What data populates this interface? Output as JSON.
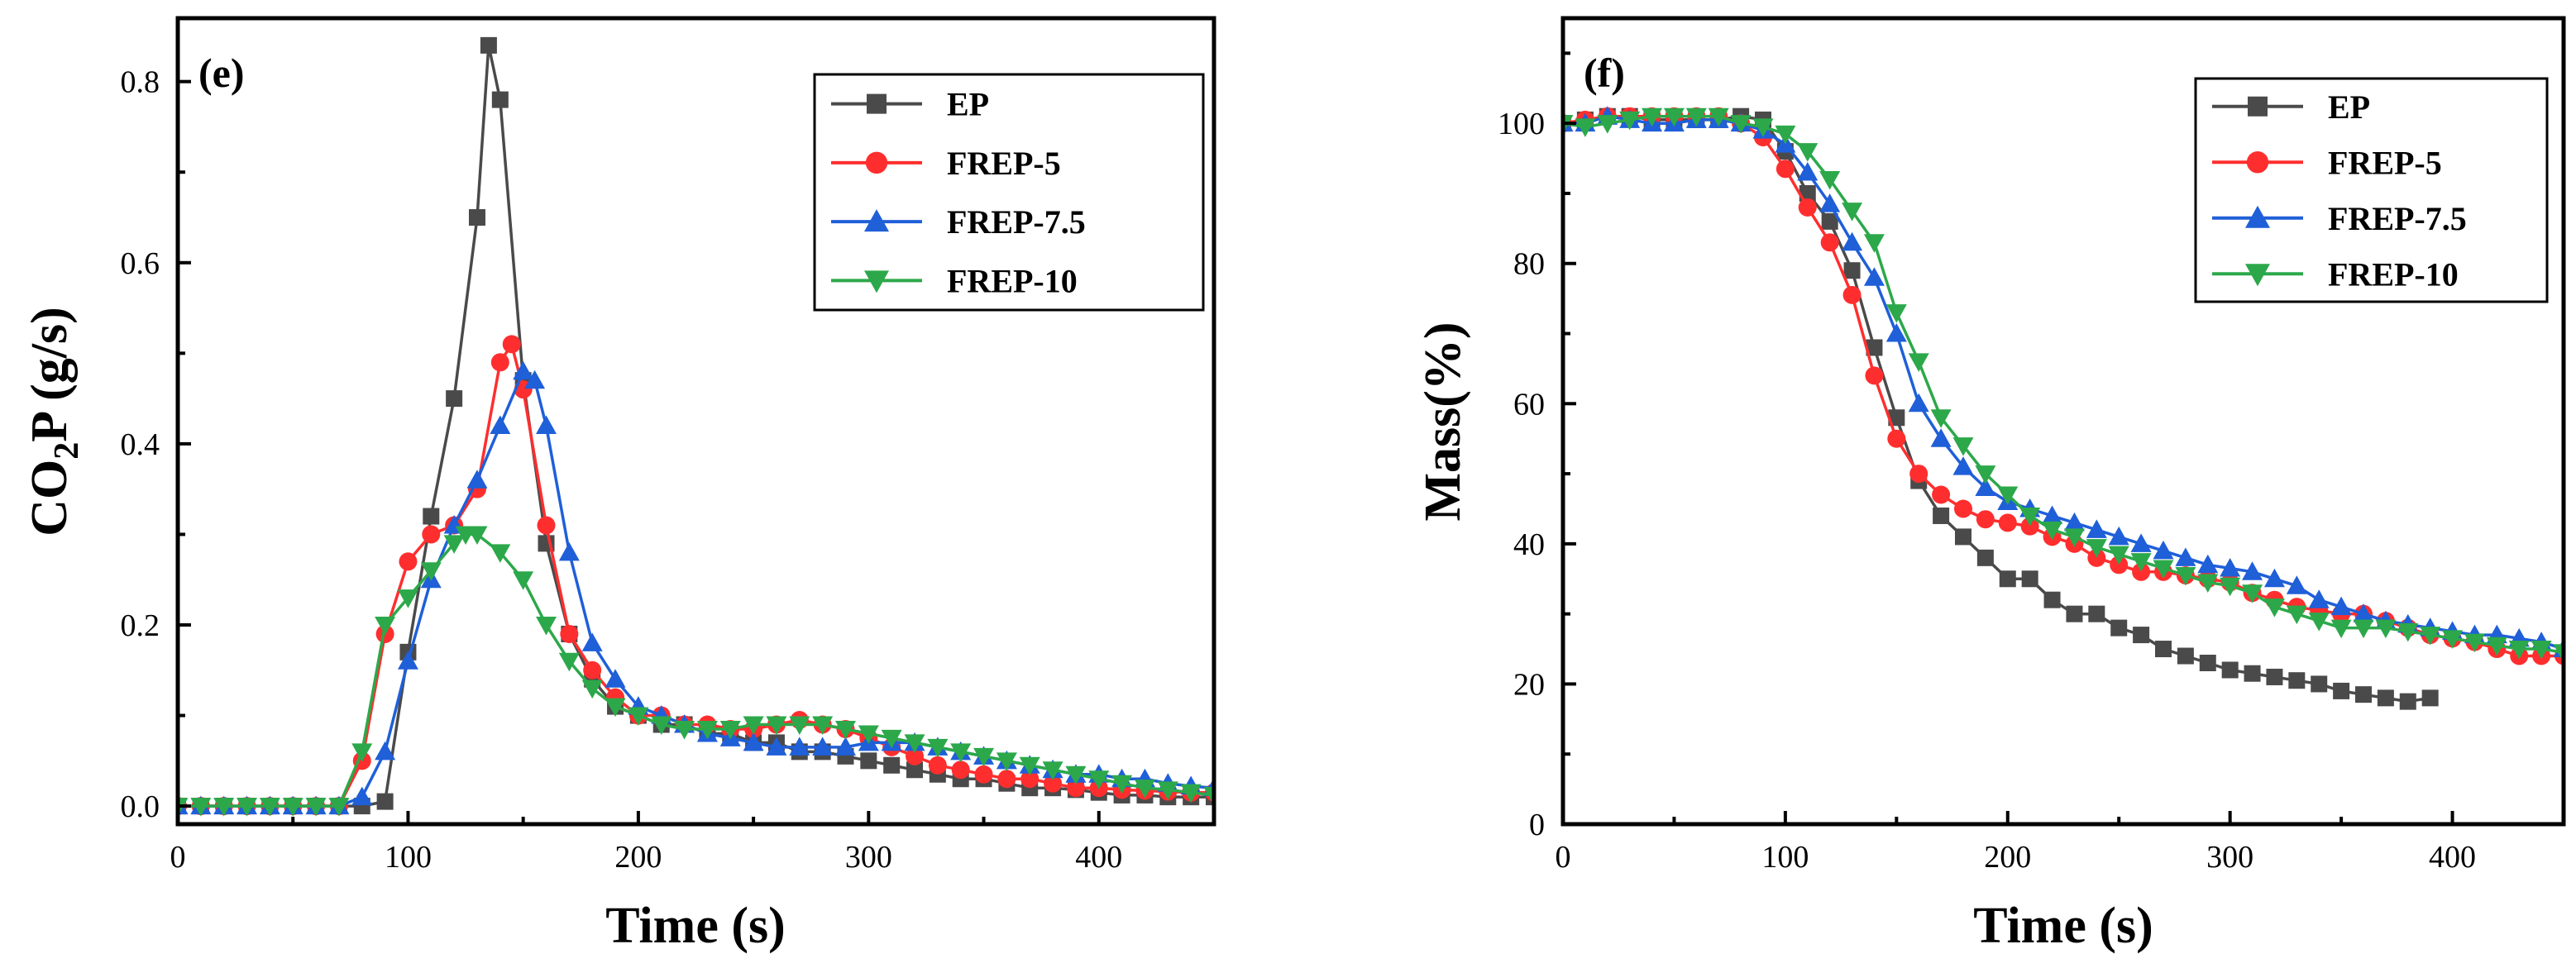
{
  "colors": {
    "EP": "#4a4a4a",
    "FREP-5": "#ff2e2e",
    "FREP-7.5": "#1f5fd8",
    "FREP-10": "#2ca84a"
  },
  "markers": {
    "EP": "square",
    "FREP-5": "circle",
    "FREP-7.5": "triangle-up",
    "FREP-10": "triangle-down"
  },
  "chart_data": [
    {
      "type": "line",
      "panel_label": "(e)",
      "xlabel": "Time (s)",
      "ylabel": "CO2P (g/s)",
      "ylabel_main": "CO",
      "ylabel_sub": "2",
      "ylabel_tail": "P (g/s)",
      "xlim": [
        0,
        450
      ],
      "ylim": [
        -0.02,
        0.87
      ],
      "xticks": [
        0,
        100,
        200,
        300,
        400
      ],
      "xtick_labels": [
        "0",
        "100",
        "200",
        "300",
        "400"
      ],
      "yticks": [
        0.0,
        0.2,
        0.4,
        0.6,
        0.8
      ],
      "ytick_labels": [
        "0.0",
        "0.2",
        "0.4",
        "0.6",
        "0.8"
      ],
      "legend": [
        "EP",
        "FREP-5",
        "FREP-7.5",
        "FREP-10"
      ],
      "legend_position": "top-right",
      "series": [
        {
          "name": "EP",
          "x": [
            0,
            10,
            20,
            30,
            40,
            50,
            60,
            70,
            80,
            90,
            100,
            110,
            120,
            130,
            135,
            140,
            150,
            160,
            170,
            180,
            190,
            200,
            210,
            220,
            230,
            240,
            250,
            260,
            270,
            280,
            290,
            300,
            310,
            320,
            330,
            340,
            350,
            360,
            370,
            380,
            390,
            400,
            410,
            420,
            430,
            440,
            450
          ],
          "y": [
            0,
            0,
            0,
            0,
            0,
            0,
            0,
            0,
            0,
            0.005,
            0.17,
            0.32,
            0.45,
            0.65,
            0.84,
            0.78,
            0.47,
            0.29,
            0.19,
            0.14,
            0.11,
            0.1,
            0.09,
            0.09,
            0.08,
            0.08,
            0.07,
            0.07,
            0.06,
            0.06,
            0.055,
            0.05,
            0.045,
            0.04,
            0.035,
            0.03,
            0.03,
            0.025,
            0.02,
            0.02,
            0.018,
            0.015,
            0.012,
            0.012,
            0.01,
            0.01,
            0.01
          ]
        },
        {
          "name": "FREP-5",
          "x": [
            0,
            10,
            20,
            30,
            40,
            50,
            60,
            70,
            80,
            90,
            100,
            110,
            120,
            130,
            140,
            145,
            150,
            160,
            170,
            180,
            190,
            200,
            210,
            220,
            230,
            240,
            250,
            260,
            270,
            280,
            290,
            300,
            310,
            320,
            330,
            340,
            350,
            360,
            370,
            380,
            390,
            400,
            410,
            420,
            430,
            440,
            450
          ],
          "y": [
            0,
            0,
            0,
            0,
            0,
            0,
            0,
            0,
            0.05,
            0.19,
            0.27,
            0.3,
            0.31,
            0.35,
            0.49,
            0.51,
            0.46,
            0.31,
            0.19,
            0.15,
            0.12,
            0.1,
            0.1,
            0.09,
            0.09,
            0.085,
            0.085,
            0.09,
            0.095,
            0.09,
            0.085,
            0.075,
            0.065,
            0.055,
            0.045,
            0.04,
            0.035,
            0.03,
            0.03,
            0.025,
            0.02,
            0.02,
            0.018,
            0.017,
            0.016,
            0.015,
            0.015
          ]
        },
        {
          "name": "FREP-7.5",
          "x": [
            0,
            10,
            20,
            30,
            40,
            50,
            60,
            70,
            80,
            90,
            100,
            110,
            120,
            130,
            140,
            150,
            155,
            160,
            170,
            180,
            190,
            200,
            210,
            220,
            230,
            240,
            250,
            260,
            270,
            280,
            290,
            300,
            310,
            320,
            330,
            340,
            350,
            360,
            370,
            380,
            390,
            400,
            410,
            420,
            430,
            440,
            450
          ],
          "y": [
            0,
            0,
            0,
            0,
            0,
            0,
            0,
            0,
            0.01,
            0.06,
            0.16,
            0.25,
            0.31,
            0.36,
            0.42,
            0.48,
            0.47,
            0.42,
            0.28,
            0.18,
            0.14,
            0.11,
            0.1,
            0.09,
            0.08,
            0.075,
            0.07,
            0.065,
            0.065,
            0.065,
            0.065,
            0.07,
            0.07,
            0.07,
            0.065,
            0.06,
            0.055,
            0.05,
            0.045,
            0.04,
            0.035,
            0.035,
            0.03,
            0.03,
            0.025,
            0.022,
            0.02
          ]
        },
        {
          "name": "FREP-10",
          "x": [
            0,
            10,
            20,
            30,
            40,
            50,
            60,
            70,
            80,
            90,
            100,
            110,
            120,
            125,
            130,
            140,
            150,
            160,
            170,
            180,
            190,
            200,
            210,
            220,
            230,
            240,
            250,
            260,
            270,
            280,
            290,
            300,
            310,
            320,
            330,
            340,
            350,
            360,
            370,
            380,
            390,
            400,
            410,
            420,
            430,
            440,
            450
          ],
          "y": [
            0,
            0,
            0,
            0,
            0,
            0,
            0,
            0,
            0.06,
            0.2,
            0.23,
            0.26,
            0.29,
            0.3,
            0.3,
            0.28,
            0.25,
            0.2,
            0.16,
            0.13,
            0.11,
            0.1,
            0.09,
            0.085,
            0.085,
            0.085,
            0.09,
            0.09,
            0.09,
            0.09,
            0.085,
            0.08,
            0.075,
            0.07,
            0.065,
            0.06,
            0.055,
            0.05,
            0.045,
            0.04,
            0.035,
            0.03,
            0.025,
            0.02,
            0.018,
            0.015,
            0.012
          ]
        }
      ]
    },
    {
      "type": "line",
      "panel_label": "(f)",
      "xlabel": "Time (s)",
      "ylabel": "Mass(%)",
      "xlim": [
        0,
        450
      ],
      "ylim": [
        0,
        115
      ],
      "xticks": [
        0,
        100,
        200,
        300,
        400
      ],
      "xtick_labels": [
        "0",
        "100",
        "200",
        "300",
        "400"
      ],
      "yticks": [
        0,
        20,
        40,
        60,
        80,
        100
      ],
      "ytick_labels": [
        "0",
        "20",
        "40",
        "60",
        "80",
        "100"
      ],
      "legend": [
        "EP",
        "FREP-5",
        "FREP-7.5",
        "FREP-10"
      ],
      "legend_position": "top-right",
      "series": [
        {
          "name": "EP",
          "x": [
            0,
            10,
            20,
            30,
            40,
            50,
            60,
            70,
            80,
            90,
            100,
            110,
            120,
            130,
            140,
            150,
            160,
            170,
            180,
            190,
            200,
            210,
            220,
            230,
            240,
            250,
            260,
            270,
            280,
            290,
            300,
            310,
            320,
            330,
            340,
            350,
            360,
            370,
            380,
            390
          ],
          "y": [
            100,
            100.5,
            101,
            101,
            100.5,
            100.5,
            100.5,
            100.5,
            101,
            100.5,
            96,
            90,
            86,
            79,
            68,
            58,
            49,
            44,
            41,
            38,
            35,
            35,
            32,
            30,
            30,
            28,
            27,
            25,
            24,
            23,
            22,
            21.5,
            21,
            20.5,
            20,
            19,
            18.5,
            18,
            17.5,
            18
          ]
        },
        {
          "name": "FREP-5",
          "x": [
            0,
            10,
            20,
            30,
            40,
            50,
            60,
            70,
            80,
            90,
            100,
            110,
            120,
            130,
            140,
            150,
            160,
            170,
            180,
            190,
            200,
            210,
            220,
            230,
            240,
            250,
            260,
            270,
            280,
            290,
            300,
            310,
            320,
            330,
            340,
            350,
            360,
            370,
            380,
            390,
            400,
            410,
            420,
            430,
            440,
            450
          ],
          "y": [
            100,
            100.5,
            101,
            101,
            101,
            101,
            101,
            101,
            100,
            98,
            93.5,
            88,
            83,
            75.5,
            64,
            55,
            50,
            47,
            45,
            43.5,
            43,
            42.5,
            41,
            40,
            38,
            37,
            36,
            36,
            35.5,
            35,
            34.5,
            33,
            32,
            31,
            30.5,
            30,
            30,
            29,
            28,
            27,
            26.5,
            26,
            25,
            24,
            24,
            24
          ]
        },
        {
          "name": "FREP-7.5",
          "x": [
            0,
            10,
            20,
            30,
            40,
            50,
            60,
            70,
            80,
            90,
            100,
            110,
            120,
            130,
            140,
            150,
            160,
            170,
            180,
            190,
            200,
            210,
            220,
            230,
            240,
            250,
            260,
            270,
            280,
            290,
            300,
            310,
            320,
            330,
            340,
            350,
            360,
            370,
            380,
            390,
            400,
            410,
            420,
            430,
            440,
            450
          ],
          "y": [
            100,
            100,
            101,
            100.5,
            100,
            100,
            100.5,
            100.5,
            100,
            99,
            97,
            93,
            88.5,
            83,
            78,
            70,
            60,
            55,
            51,
            48,
            46,
            45,
            44,
            43,
            42,
            41,
            40,
            39,
            38,
            37,
            36.5,
            36,
            35,
            34,
            32,
            31,
            30,
            29,
            28.5,
            28,
            27.5,
            27,
            27,
            26.5,
            26,
            25
          ]
        },
        {
          "name": "FREP-10",
          "x": [
            0,
            10,
            20,
            30,
            40,
            50,
            60,
            70,
            80,
            90,
            100,
            110,
            120,
            130,
            140,
            150,
            160,
            170,
            180,
            190,
            200,
            210,
            220,
            230,
            240,
            250,
            260,
            270,
            280,
            290,
            300,
            310,
            320,
            330,
            340,
            350,
            360,
            370,
            380,
            390,
            400,
            410,
            420,
            430,
            440,
            450
          ],
          "y": [
            100,
            99.5,
            100,
            100.5,
            101,
            101,
            101,
            101,
            100,
            99.5,
            98.5,
            96,
            92,
            87.5,
            83,
            73,
            66,
            58,
            54,
            50,
            47,
            44,
            42,
            41,
            39.5,
            38.5,
            37.5,
            36.5,
            35.5,
            34.5,
            34,
            33,
            31,
            30,
            29,
            28,
            28,
            28,
            27.5,
            27,
            26.5,
            26,
            25.5,
            25,
            25,
            24.5
          ]
        }
      ]
    }
  ]
}
